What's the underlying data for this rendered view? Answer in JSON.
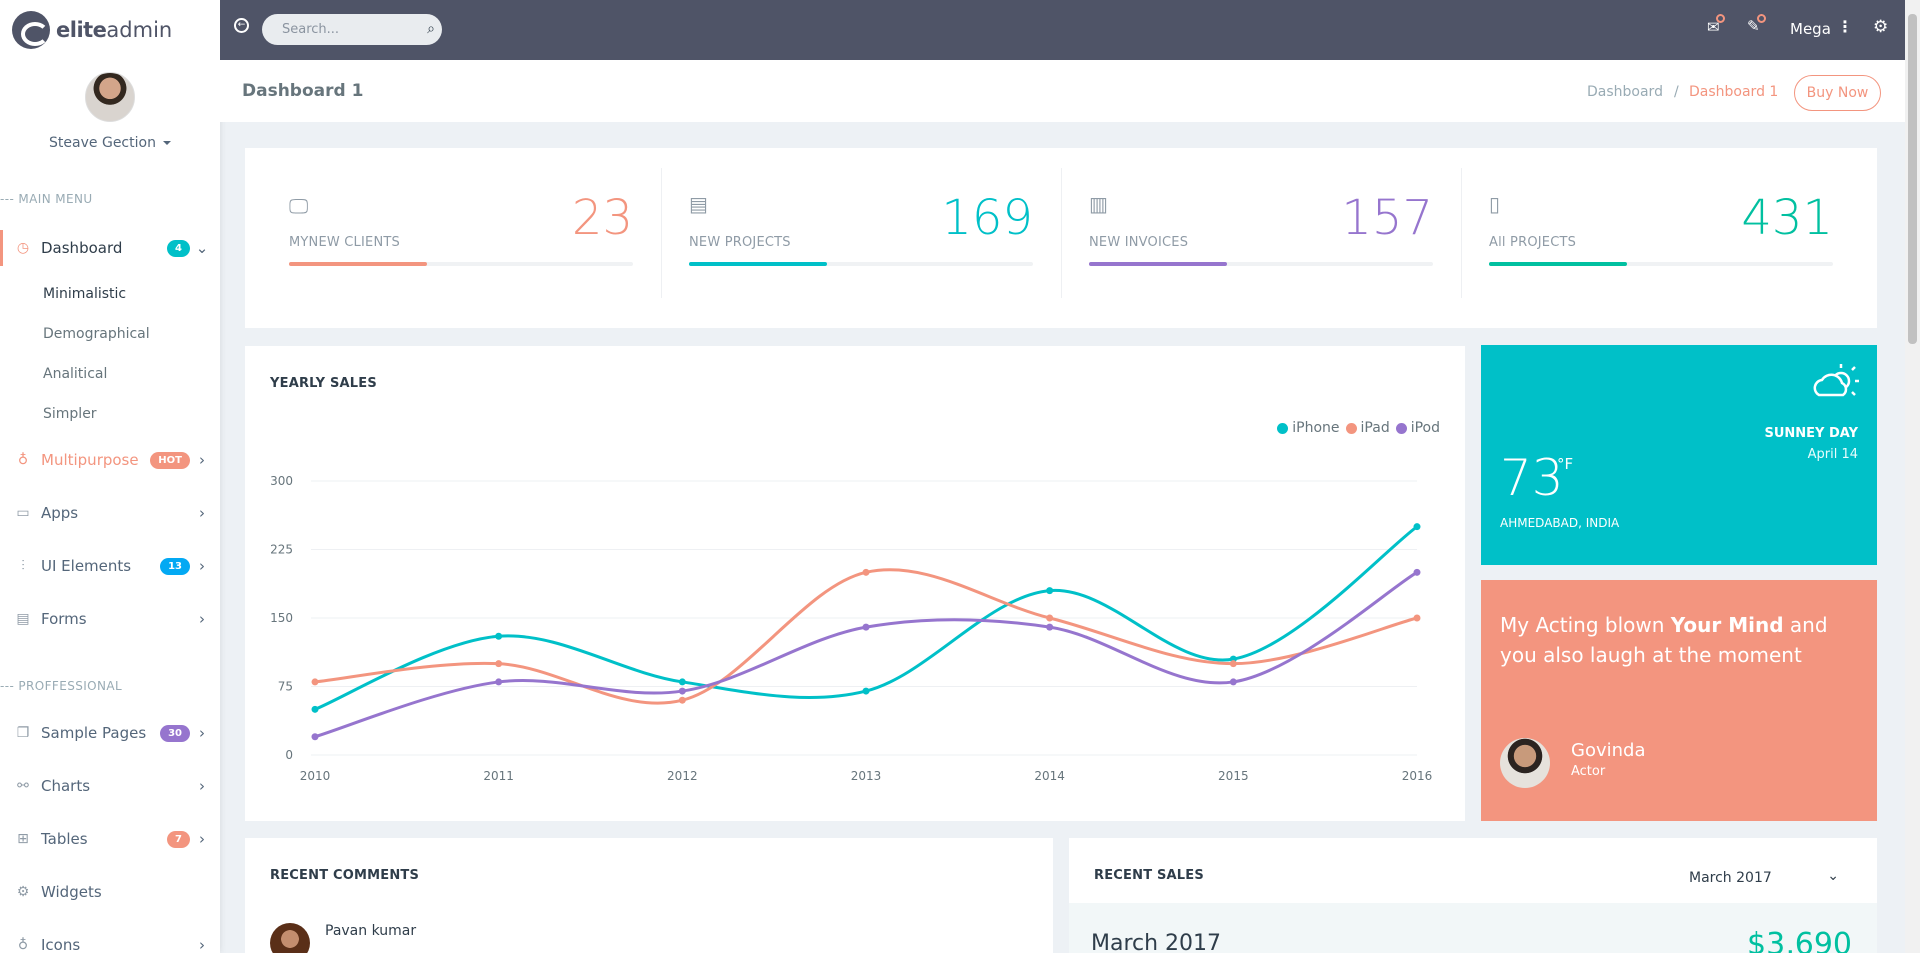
{
  "brand": {
    "part1": "elite",
    "part2": "admin"
  },
  "user": {
    "name": "Steave Gection"
  },
  "sidebar": {
    "caption_main": "--- MAIN MENU",
    "caption_pro": "--- PROFFESSIONAL",
    "dashboard": {
      "label": "Dashboard",
      "badge": "4"
    },
    "sub": [
      "Minimalistic",
      "Demographical",
      "Analitical",
      "Simpler"
    ],
    "multipurpose": {
      "label": "Multipurpose",
      "badge": "HOT"
    },
    "apps": {
      "label": "Apps"
    },
    "ui_elements": {
      "label": "UI Elements",
      "badge": "13"
    },
    "forms": {
      "label": "Forms"
    },
    "sample_pages": {
      "label": "Sample Pages",
      "badge": "30"
    },
    "charts": {
      "label": "Charts"
    },
    "tables": {
      "label": "Tables",
      "badge": "7"
    },
    "widgets": {
      "label": "Widgets"
    },
    "icons": {
      "label": "Icons"
    }
  },
  "topbar": {
    "search_placeholder": "Search...",
    "mega": "Mega"
  },
  "page": {
    "title": "Dashboard 1",
    "breadcrumb_home": "Dashboard",
    "breadcrumb_sep": "/",
    "breadcrumb_current": "Dashboard 1",
    "buy_now": "Buy Now"
  },
  "stats": [
    {
      "label": "MYNEW CLIENTS",
      "value": "23",
      "progress": 0.4,
      "color": "#f3957f"
    },
    {
      "label": "NEW PROJECTS",
      "value": "169",
      "progress": 0.4,
      "color": "#00c0c8"
    },
    {
      "label": "NEW INVOICES",
      "value": "157",
      "progress": 0.4,
      "color": "#9675ce"
    },
    {
      "label": "All PROJECTS",
      "value": "431",
      "progress": 0.4,
      "color": "#01c0a0"
    }
  ],
  "sales": {
    "title": "YEARLY SALES"
  },
  "chart_data": {
    "type": "line",
    "x": [
      "2010",
      "2011",
      "2012",
      "2013",
      "2014",
      "2015",
      "2016"
    ],
    "series": [
      {
        "name": "iPhone",
        "color": "#00c0c8",
        "values": [
          50,
          130,
          80,
          70,
          180,
          105,
          250
        ]
      },
      {
        "name": "iPad",
        "color": "#f3957f",
        "values": [
          80,
          100,
          60,
          200,
          150,
          100,
          150
        ]
      },
      {
        "name": "iPod",
        "color": "#9675ce",
        "values": [
          20,
          80,
          70,
          140,
          140,
          80,
          200
        ]
      }
    ],
    "yticks": [
      "0",
      "75",
      "150",
      "225",
      "300"
    ],
    "ylim": [
      0,
      300
    ],
    "legend": "top-right",
    "grid": true
  },
  "weather": {
    "day": "SUNNEY DAY",
    "date": "April 14",
    "temp": "73",
    "unit": "°F",
    "location": "AHMEDABAD, INDIA",
    "bg": "#00c0c8"
  },
  "quote": {
    "pre": "My Acting blown ",
    "bold": "Your Mind",
    "post": " and you also laugh at the moment",
    "author": "Govinda",
    "role": "Actor",
    "bg": "#f3957f"
  },
  "comments": {
    "title": "RECENT COMMENTS",
    "first_name": "Pavan kumar"
  },
  "recent_sales": {
    "title": "RECENT SALES",
    "month_select": "March 2017",
    "month_heading": "March 2017",
    "amount": "$3,690"
  }
}
